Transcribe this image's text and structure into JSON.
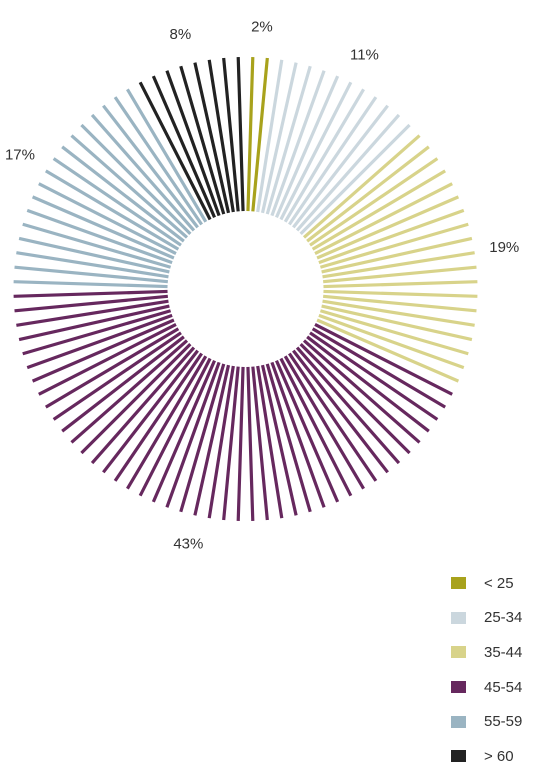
{
  "chart_data": {
    "type": "pie",
    "style": "radial-lines",
    "legend": "bottom-right",
    "slices": [
      {
        "name": "< 25",
        "value": 2,
        "label": "2%",
        "color": "#a8a21c"
      },
      {
        "name": "25-34",
        "value": 11,
        "label": "11%",
        "color": "#cbd7de"
      },
      {
        "name": "35-44",
        "value": 19,
        "label": "19%",
        "color": "#d8d38a"
      },
      {
        "name": "45-54",
        "value": 43,
        "label": "43%",
        "color": "#66285e"
      },
      {
        "name": "55-59",
        "value": 17,
        "label": "17%",
        "color": "#9ab4c2"
      },
      {
        "name": "> 60",
        "value": 8,
        "label": "8%",
        "color": "#222222"
      }
    ]
  }
}
